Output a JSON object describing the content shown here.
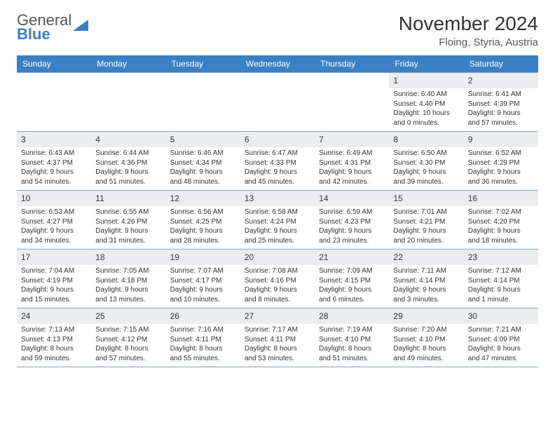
{
  "brand": {
    "top": "General",
    "bottom": "Blue"
  },
  "title": "November 2024",
  "location": "Floing, Styria, Austria",
  "day_headers": [
    "Sunday",
    "Monday",
    "Tuesday",
    "Wednesday",
    "Thursday",
    "Friday",
    "Saturday"
  ],
  "colors": {
    "header_bg": "#3b7fc4",
    "header_text": "#ffffff",
    "daynum_bg": "#ebedef",
    "cell_border": "#7aa7d4",
    "title_color": "#333333",
    "brand_blue": "#3b7fc4",
    "brand_gray": "#555555",
    "background": "#ffffff"
  },
  "days": [
    {
      "n": 1,
      "sunrise": "6:40 AM",
      "sunset": "4:40 PM",
      "daylight": "10 hours and 0 minutes."
    },
    {
      "n": 2,
      "sunrise": "6:41 AM",
      "sunset": "4:39 PM",
      "daylight": "9 hours and 57 minutes."
    },
    {
      "n": 3,
      "sunrise": "6:43 AM",
      "sunset": "4:37 PM",
      "daylight": "9 hours and 54 minutes."
    },
    {
      "n": 4,
      "sunrise": "6:44 AM",
      "sunset": "4:36 PM",
      "daylight": "9 hours and 51 minutes."
    },
    {
      "n": 5,
      "sunrise": "6:46 AM",
      "sunset": "4:34 PM",
      "daylight": "9 hours and 48 minutes."
    },
    {
      "n": 6,
      "sunrise": "6:47 AM",
      "sunset": "4:33 PM",
      "daylight": "9 hours and 45 minutes."
    },
    {
      "n": 7,
      "sunrise": "6:49 AM",
      "sunset": "4:31 PM",
      "daylight": "9 hours and 42 minutes."
    },
    {
      "n": 8,
      "sunrise": "6:50 AM",
      "sunset": "4:30 PM",
      "daylight": "9 hours and 39 minutes."
    },
    {
      "n": 9,
      "sunrise": "6:52 AM",
      "sunset": "4:29 PM",
      "daylight": "9 hours and 36 minutes."
    },
    {
      "n": 10,
      "sunrise": "6:53 AM",
      "sunset": "4:27 PM",
      "daylight": "9 hours and 34 minutes."
    },
    {
      "n": 11,
      "sunrise": "6:55 AM",
      "sunset": "4:26 PM",
      "daylight": "9 hours and 31 minutes."
    },
    {
      "n": 12,
      "sunrise": "6:56 AM",
      "sunset": "4:25 PM",
      "daylight": "9 hours and 28 minutes."
    },
    {
      "n": 13,
      "sunrise": "6:58 AM",
      "sunset": "4:24 PM",
      "daylight": "9 hours and 25 minutes."
    },
    {
      "n": 14,
      "sunrise": "6:59 AM",
      "sunset": "4:23 PM",
      "daylight": "9 hours and 23 minutes."
    },
    {
      "n": 15,
      "sunrise": "7:01 AM",
      "sunset": "4:21 PM",
      "daylight": "9 hours and 20 minutes."
    },
    {
      "n": 16,
      "sunrise": "7:02 AM",
      "sunset": "4:20 PM",
      "daylight": "9 hours and 18 minutes."
    },
    {
      "n": 17,
      "sunrise": "7:04 AM",
      "sunset": "4:19 PM",
      "daylight": "9 hours and 15 minutes."
    },
    {
      "n": 18,
      "sunrise": "7:05 AM",
      "sunset": "4:18 PM",
      "daylight": "9 hours and 13 minutes."
    },
    {
      "n": 19,
      "sunrise": "7:07 AM",
      "sunset": "4:17 PM",
      "daylight": "9 hours and 10 minutes."
    },
    {
      "n": 20,
      "sunrise": "7:08 AM",
      "sunset": "4:16 PM",
      "daylight": "9 hours and 8 minutes."
    },
    {
      "n": 21,
      "sunrise": "7:09 AM",
      "sunset": "4:15 PM",
      "daylight": "9 hours and 6 minutes."
    },
    {
      "n": 22,
      "sunrise": "7:11 AM",
      "sunset": "4:14 PM",
      "daylight": "9 hours and 3 minutes."
    },
    {
      "n": 23,
      "sunrise": "7:12 AM",
      "sunset": "4:14 PM",
      "daylight": "9 hours and 1 minute."
    },
    {
      "n": 24,
      "sunrise": "7:13 AM",
      "sunset": "4:13 PM",
      "daylight": "8 hours and 59 minutes."
    },
    {
      "n": 25,
      "sunrise": "7:15 AM",
      "sunset": "4:12 PM",
      "daylight": "8 hours and 57 minutes."
    },
    {
      "n": 26,
      "sunrise": "7:16 AM",
      "sunset": "4:11 PM",
      "daylight": "8 hours and 55 minutes."
    },
    {
      "n": 27,
      "sunrise": "7:17 AM",
      "sunset": "4:11 PM",
      "daylight": "8 hours and 53 minutes."
    },
    {
      "n": 28,
      "sunrise": "7:19 AM",
      "sunset": "4:10 PM",
      "daylight": "8 hours and 51 minutes."
    },
    {
      "n": 29,
      "sunrise": "7:20 AM",
      "sunset": "4:10 PM",
      "daylight": "8 hours and 49 minutes."
    },
    {
      "n": 30,
      "sunrise": "7:21 AM",
      "sunset": "4:09 PM",
      "daylight": "8 hours and 47 minutes."
    }
  ],
  "lead_blank_cells": 5
}
